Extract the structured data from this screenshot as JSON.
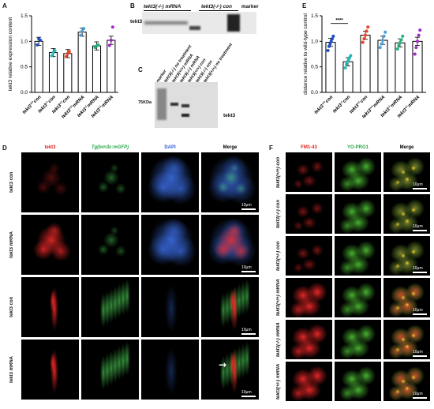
{
  "panels": {
    "A": {
      "letter": "A",
      "ylabel": "tekt3 relative expression content"
    },
    "B": {
      "letter": "B",
      "header1": "tekt3(-/-) mRNA",
      "header2": "tekt3(-/-) con",
      "header3": "marker",
      "band": "tekt3"
    },
    "C": {
      "letter": "C",
      "lanes": [
        "marker",
        "tekt3(-/-) no treatment",
        "tekt3(+/+) mRNA",
        "tekt3(-/-) mRNA",
        "tekt3(+/+) con",
        "tekt3(-/-) con",
        "tekt3(+/+) no treatment"
      ],
      "kda": "75KDa",
      "band": "tekt3"
    },
    "D": {
      "letter": "D",
      "headers": [
        "tekt3",
        "Tg(brn3c:mGFP)",
        "DAPI",
        "Merge"
      ],
      "rows": [
        "tekt3 con",
        "tekt3 mRNA",
        "tekt3 con",
        "tekt3 mRNA"
      ],
      "scale": "10μm",
      "arrow": "→"
    },
    "E": {
      "letter": "E",
      "ylabel": "distance relative to wild-type control",
      "sig": "****"
    },
    "F": {
      "letter": "F",
      "headers": [
        "FM1-43",
        "YO-PRO1",
        "Merge"
      ],
      "rows": [
        "tekt3(+/+) con",
        "tekt3(-/-) con",
        "tekt3(+/-) con",
        "tekt3(+/+) mRNA",
        "tekt3(-/-) mRNA",
        "tekt3(+/-) mRNA"
      ],
      "scale": "10μm"
    }
  },
  "chart_data": [
    {
      "type": "bar",
      "panel": "A",
      "ylabel": "tekt3 relative expression content",
      "ylim": [
        0,
        1.5
      ],
      "yticks": [
        0.0,
        0.5,
        1.0,
        1.5
      ],
      "categories": [
        "tekt3(+/+) con",
        "tekt3(-/-) con",
        "tekt3(+/-) con",
        "tekt3(+/+) mRNA",
        "tekt3(-/-) mRNA",
        "tekt3(+/-) mRNA"
      ],
      "values": [
        1.0,
        0.78,
        0.76,
        1.18,
        0.91,
        1.02
      ],
      "colors": [
        "#1f4fc4",
        "#2bb7b2",
        "#e2452c",
        "#4aa0d8",
        "#27b07a",
        "#a02ac9"
      ],
      "points": [
        [
          0.93,
          1.05,
          1.02
        ],
        [
          0.72,
          0.78,
          0.82
        ],
        [
          0.7,
          0.76,
          0.8
        ],
        [
          1.12,
          1.2,
          1.25
        ],
        [
          0.88,
          0.91,
          0.93
        ],
        [
          0.92,
          1.02,
          1.28
        ]
      ]
    },
    {
      "type": "bar",
      "panel": "E",
      "ylabel": "distance relative to wild-type control",
      "ylim": [
        0,
        1.5
      ],
      "yticks": [
        0.0,
        0.5,
        1.0,
        1.5
      ],
      "categories": [
        "tekt3(+/+) con",
        "tekt3(-/-) con",
        "tekt3(+/-) con",
        "tekt3(+/+) mRNA",
        "tekt3(-/-) mRNA",
        "tekt3(+/-) mRNA"
      ],
      "values": [
        0.98,
        0.6,
        1.12,
        1.02,
        0.97,
        1.0
      ],
      "colors": [
        "#1f4fc4",
        "#2bb7b2",
        "#e2452c",
        "#4aa0d8",
        "#27b07a",
        "#a02ac9"
      ],
      "points": [
        [
          0.82,
          0.9,
          0.95,
          1.0,
          1.05,
          1.1
        ],
        [
          0.48,
          0.55,
          0.6,
          0.64,
          0.68,
          0.72
        ],
        [
          0.98,
          1.05,
          1.12,
          1.2,
          1.28
        ],
        [
          0.88,
          0.95,
          1.02,
          1.1,
          1.18
        ],
        [
          0.85,
          0.92,
          0.97,
          1.03,
          1.1
        ],
        [
          0.75,
          0.88,
          1.0,
          1.12,
          1.22
        ]
      ],
      "significance": "****"
    }
  ]
}
